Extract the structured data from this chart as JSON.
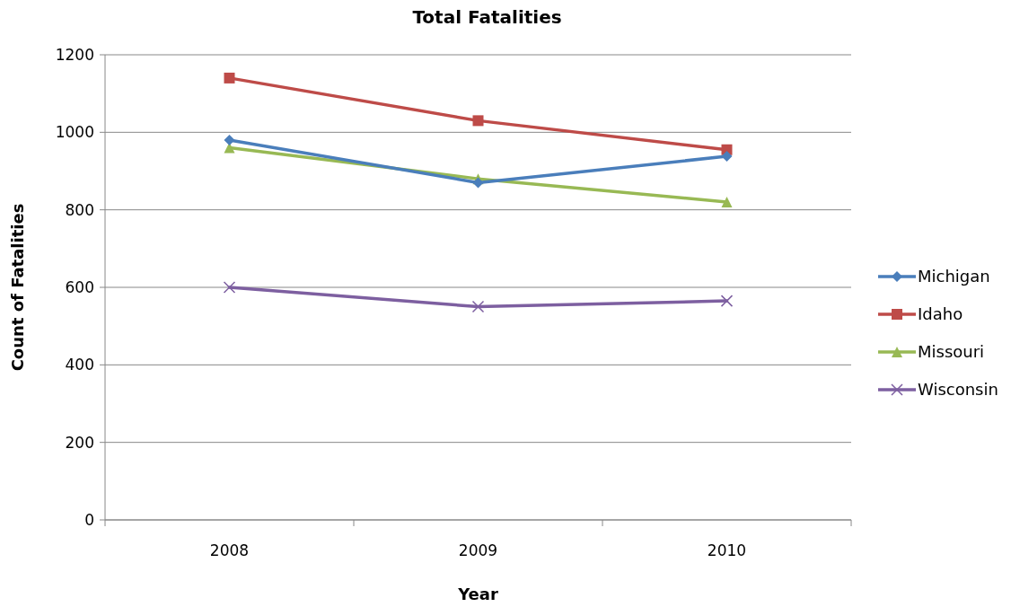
{
  "chart_data": {
    "type": "line",
    "title": "Total Fatalities",
    "xlabel": "Year",
    "ylabel": "Count of Fatalities",
    "categories": [
      "2008",
      "2009",
      "2010"
    ],
    "series": [
      {
        "name": "Michigan",
        "color": "#4a7ebb",
        "values": [
          980,
          870,
          938
        ],
        "marker": "diamond"
      },
      {
        "name": "Idaho",
        "color": "#be4b48",
        "values": [
          1140,
          1030,
          955
        ],
        "marker": "square"
      },
      {
        "name": "Missouri",
        "color": "#98b954",
        "values": [
          960,
          880,
          820
        ],
        "marker": "triangle"
      },
      {
        "name": "Wisconsin",
        "color": "#7d5fa0",
        "values": [
          600,
          550,
          565
        ],
        "marker": "cross"
      }
    ],
    "ylim": [
      0,
      1200
    ],
    "yticks": [
      0,
      200,
      400,
      600,
      800,
      1000,
      1200
    ],
    "grid": "y",
    "legend": "right",
    "line_style": "solid"
  }
}
